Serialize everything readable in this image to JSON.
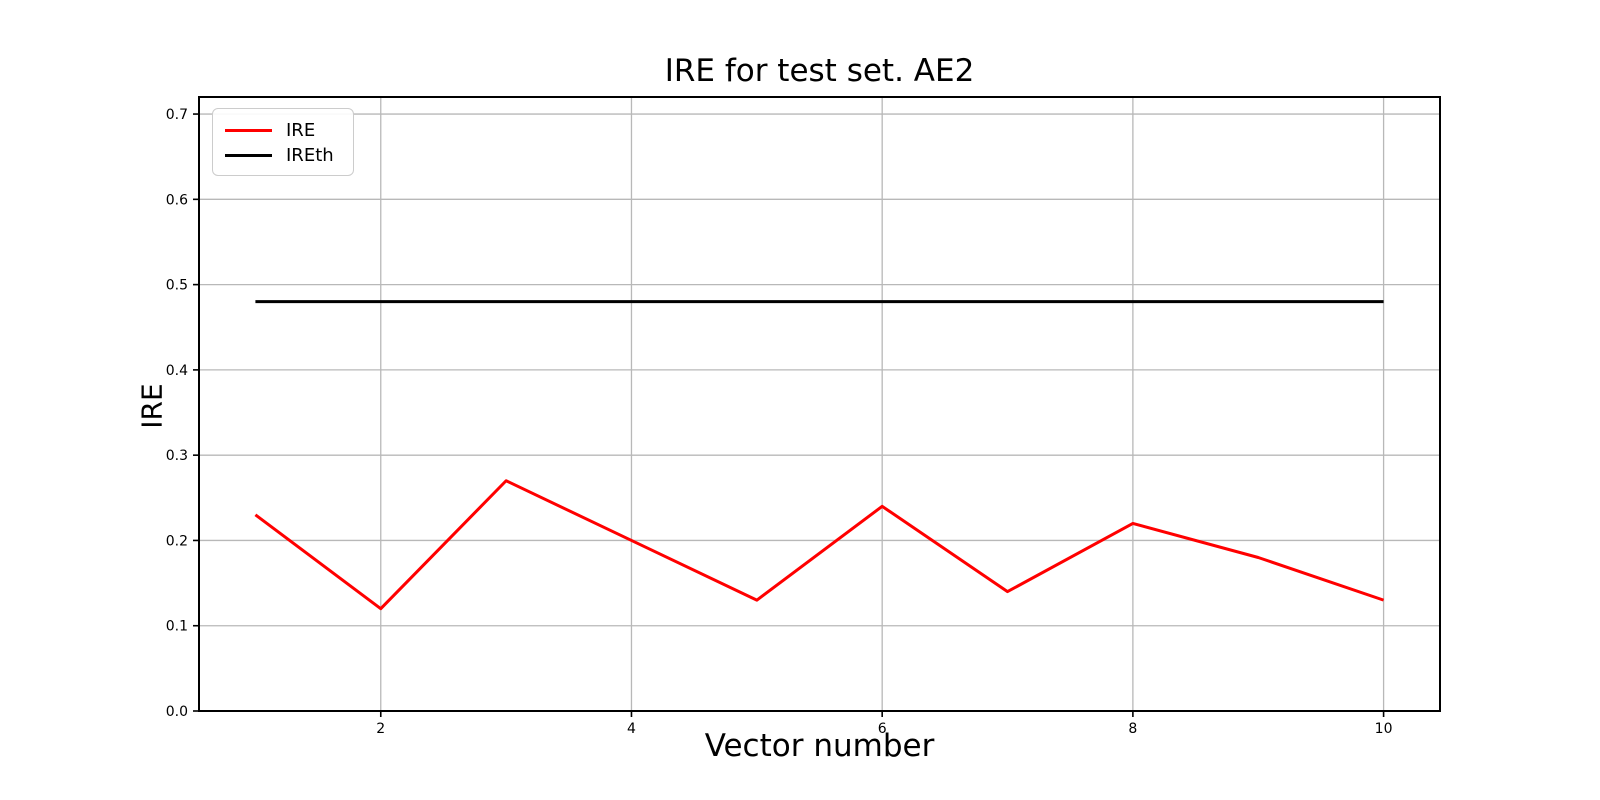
{
  "chart_data": {
    "type": "line",
    "title": "IRE for test set. AE2",
    "xlabel": "Vector number",
    "ylabel": "IRE",
    "x": [
      1,
      2,
      3,
      4,
      5,
      6,
      7,
      8,
      9,
      10
    ],
    "series": [
      {
        "name": "IRE",
        "color": "#ff0000",
        "values": [
          0.23,
          0.12,
          0.27,
          0.2,
          0.13,
          0.24,
          0.14,
          0.22,
          0.18,
          0.13
        ]
      },
      {
        "name": "IREth",
        "color": "#000000",
        "values": [
          0.48,
          0.48,
          0.48,
          0.48,
          0.48,
          0.48,
          0.48,
          0.48,
          0.48,
          0.48
        ]
      }
    ],
    "xlim": [
      0.55,
      10.45
    ],
    "ylim": [
      0.0,
      0.72
    ],
    "xticks": [
      2,
      4,
      6,
      8,
      10
    ],
    "yticks": [
      "0.0",
      "0.1",
      "0.2",
      "0.3",
      "0.4",
      "0.5",
      "0.6",
      "0.7"
    ],
    "grid": true,
    "legend_position": "upper left",
    "grid_color": "#b8b8b8",
    "spine_color": "#000000"
  }
}
